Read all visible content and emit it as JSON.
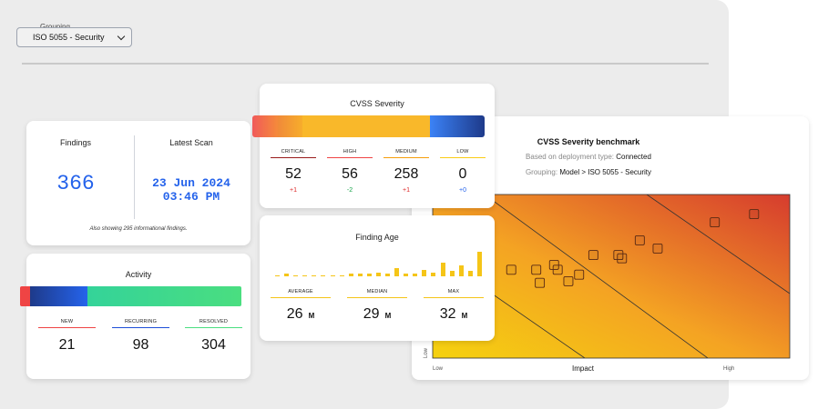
{
  "grouping": {
    "label": "Grouping",
    "value": "ISO 5055 - Security"
  },
  "findings": {
    "title": "Findings",
    "value": "366",
    "note": "Also showing 295 informational findings."
  },
  "latest_scan": {
    "title": "Latest Scan",
    "date": "23 Jun 2024",
    "time": "03:46 PM"
  },
  "activity": {
    "title": "Activity",
    "columns": [
      {
        "label": "NEW",
        "value": "21",
        "color": "#ef4444"
      },
      {
        "label": "RECURRING",
        "value": "98",
        "color": "#1d4ed8"
      },
      {
        "label": "RESOLVED",
        "value": "304",
        "color": "#4ade80"
      }
    ]
  },
  "cvss": {
    "title": "CVSS Severity",
    "columns": [
      {
        "label": "CRITICAL",
        "value": "52",
        "delta": "+1",
        "color": "#991b1b",
        "delta_color": "#dc2626"
      },
      {
        "label": "HIGH",
        "value": "56",
        "delta": "-2",
        "color": "#ef4444",
        "delta_color": "#16a34a"
      },
      {
        "label": "MEDIUM",
        "value": "258",
        "delta": "+1",
        "color": "#f59e0b",
        "delta_color": "#dc2626"
      },
      {
        "label": "LOW",
        "value": "0",
        "delta": "+0",
        "color": "#facc15",
        "delta_color": "#2563eb"
      }
    ]
  },
  "finding_age": {
    "title": "Finding Age",
    "histogram": [
      1,
      2,
      1,
      1,
      0,
      1,
      0,
      1,
      2,
      2,
      2,
      3,
      2,
      6,
      2,
      2,
      5,
      3,
      10,
      4,
      8,
      4,
      18
    ],
    "columns": [
      {
        "label": "AVERAGE",
        "value": "26",
        "unit": "M"
      },
      {
        "label": "MEDIAN",
        "value": "29",
        "unit": "M"
      },
      {
        "label": "MAX",
        "value": "32",
        "unit": "M"
      }
    ]
  },
  "benchmark": {
    "title": "CVSS Severity benchmark",
    "deployment_prefix": "Based on deployment type: ",
    "deployment_value": "Connected",
    "grouping_prefix": "Grouping: ",
    "grouping_value": "Model > ISO 5055 - Security",
    "x_label": "Impact",
    "x_low": "Low",
    "x_high": "High",
    "y_low": "Low"
  },
  "chart_data": {
    "type": "scatter",
    "xlabel": "Impact",
    "ylabel": "",
    "x_tick_labels": [
      "Low",
      "High"
    ],
    "y_tick_labels": [
      "Low"
    ],
    "xlim": [
      0,
      1
    ],
    "ylim": [
      0,
      1
    ],
    "points": [
      [
        0.22,
        0.54
      ],
      [
        0.29,
        0.54
      ],
      [
        0.3,
        0.46
      ],
      [
        0.34,
        0.57
      ],
      [
        0.35,
        0.54
      ],
      [
        0.38,
        0.47
      ],
      [
        0.41,
        0.51
      ],
      [
        0.45,
        0.63
      ],
      [
        0.52,
        0.63
      ],
      [
        0.53,
        0.61
      ],
      [
        0.58,
        0.72
      ],
      [
        0.63,
        0.67
      ],
      [
        0.79,
        0.83
      ],
      [
        0.9,
        0.88
      ]
    ],
    "grid": false
  }
}
